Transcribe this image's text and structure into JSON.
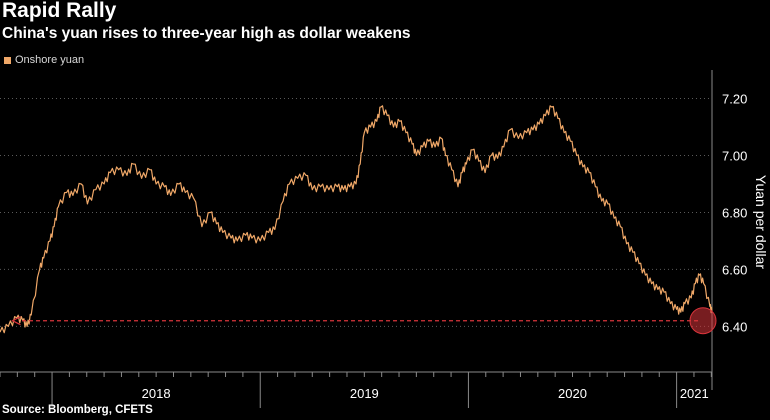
{
  "header": {
    "title": "Rapid Rally",
    "subtitle": "China's yuan rises to three-year high as dollar weakens"
  },
  "legend": {
    "label": "Onshore yuan",
    "color": "#f0a868"
  },
  "footer": {
    "source": "Source: Bloomberg, CFETS"
  },
  "chart_data": {
    "type": "line",
    "title": "Rapid Rally",
    "subtitle": "China's yuan rises to three-year high as dollar weakens",
    "ylabel": "Yuan per dollar",
    "ylim": [
      6.24,
      7.3
    ],
    "yticks": [
      6.4,
      6.6,
      6.8,
      7.0,
      7.2
    ],
    "ytick_labels": [
      "6.40",
      "6.60",
      "6.80",
      "7.00",
      "7.20"
    ],
    "xlim": [
      2017.75,
      2021.17
    ],
    "year_ticks": [
      {
        "label": "2018",
        "pos": 2018.0
      },
      {
        "label": "2019",
        "pos": 2019.0
      },
      {
        "label": "2020",
        "pos": 2020.0
      },
      {
        "label": "2021",
        "pos": 2021.0
      }
    ],
    "grid": true,
    "series": [
      {
        "name": "Onshore yuan",
        "color": "#f0a868",
        "points": [
          [
            2017.75,
            6.38
          ],
          [
            2017.79,
            6.4
          ],
          [
            2017.83,
            6.43
          ],
          [
            2017.86,
            6.42
          ],
          [
            2017.88,
            6.4
          ],
          [
            2017.9,
            6.44
          ],
          [
            2017.94,
            6.6
          ],
          [
            2017.96,
            6.64
          ],
          [
            2017.99,
            6.7
          ],
          [
            2018.01,
            6.75
          ],
          [
            2018.03,
            6.82
          ],
          [
            2018.07,
            6.87
          ],
          [
            2018.1,
            6.86
          ],
          [
            2018.14,
            6.9
          ],
          [
            2018.17,
            6.83
          ],
          [
            2018.21,
            6.88
          ],
          [
            2018.25,
            6.9
          ],
          [
            2018.28,
            6.94
          ],
          [
            2018.32,
            6.95
          ],
          [
            2018.36,
            6.93
          ],
          [
            2018.39,
            6.97
          ],
          [
            2018.43,
            6.92
          ],
          [
            2018.47,
            6.95
          ],
          [
            2018.5,
            6.9
          ],
          [
            2018.54,
            6.89
          ],
          [
            2018.57,
            6.86
          ],
          [
            2018.61,
            6.9
          ],
          [
            2018.64,
            6.87
          ],
          [
            2018.68,
            6.85
          ],
          [
            2018.72,
            6.75
          ],
          [
            2018.76,
            6.8
          ],
          [
            2018.79,
            6.76
          ],
          [
            2018.82,
            6.73
          ],
          [
            2018.86,
            6.71
          ],
          [
            2018.89,
            6.7
          ],
          [
            2018.93,
            6.72
          ],
          [
            2018.96,
            6.71
          ],
          [
            2019.0,
            6.7
          ],
          [
            2019.04,
            6.73
          ],
          [
            2019.07,
            6.74
          ],
          [
            2019.11,
            6.84
          ],
          [
            2019.14,
            6.9
          ],
          [
            2019.18,
            6.92
          ],
          [
            2019.22,
            6.93
          ],
          [
            2019.25,
            6.88
          ],
          [
            2019.29,
            6.89
          ],
          [
            2019.33,
            6.88
          ],
          [
            2019.37,
            6.89
          ],
          [
            2019.4,
            6.88
          ],
          [
            2019.43,
            6.89
          ],
          [
            2019.46,
            6.9
          ],
          [
            2019.48,
            6.97
          ],
          [
            2019.5,
            7.08
          ],
          [
            2019.53,
            7.1
          ],
          [
            2019.56,
            7.12
          ],
          [
            2019.58,
            7.17
          ],
          [
            2019.61,
            7.14
          ],
          [
            2019.64,
            7.1
          ],
          [
            2019.67,
            7.12
          ],
          [
            2019.7,
            7.08
          ],
          [
            2019.73,
            7.04
          ],
          [
            2019.75,
            7.0
          ],
          [
            2019.78,
            7.03
          ],
          [
            2019.81,
            7.05
          ],
          [
            2019.84,
            7.03
          ],
          [
            2019.87,
            7.06
          ],
          [
            2019.89,
            7.0
          ],
          [
            2019.92,
            6.95
          ],
          [
            2019.95,
            6.89
          ],
          [
            2019.97,
            6.94
          ],
          [
            2019.99,
            6.97
          ],
          [
            2020.02,
            7.02
          ],
          [
            2020.05,
            6.98
          ],
          [
            2020.08,
            6.94
          ],
          [
            2020.11,
            7.0
          ],
          [
            2020.14,
            6.99
          ],
          [
            2020.17,
            7.03
          ],
          [
            2020.2,
            7.09
          ],
          [
            2020.24,
            7.06
          ],
          [
            2020.28,
            7.08
          ],
          [
            2020.31,
            7.09
          ],
          [
            2020.34,
            7.11
          ],
          [
            2020.37,
            7.14
          ],
          [
            2020.4,
            7.17
          ],
          [
            2020.43,
            7.13
          ],
          [
            2020.46,
            7.08
          ],
          [
            2020.49,
            7.05
          ],
          [
            2020.52,
            7.0
          ],
          [
            2020.55,
            6.96
          ],
          [
            2020.58,
            6.94
          ],
          [
            2020.61,
            6.89
          ],
          [
            2020.64,
            6.84
          ],
          [
            2020.67,
            6.83
          ],
          [
            2020.7,
            6.78
          ],
          [
            2020.73,
            6.75
          ],
          [
            2020.76,
            6.69
          ],
          [
            2020.79,
            6.66
          ],
          [
            2020.82,
            6.62
          ],
          [
            2020.85,
            6.58
          ],
          [
            2020.88,
            6.55
          ],
          [
            2020.91,
            6.53
          ],
          [
            2020.94,
            6.52
          ],
          [
            2020.97,
            6.48
          ],
          [
            2021.0,
            6.46
          ],
          [
            2021.02,
            6.45
          ],
          [
            2021.04,
            6.48
          ],
          [
            2021.07,
            6.5
          ],
          [
            2021.09,
            6.55
          ],
          [
            2021.11,
            6.58
          ],
          [
            2021.13,
            6.55
          ],
          [
            2021.16,
            6.47
          ],
          [
            2021.17,
            6.45
          ]
        ]
      }
    ],
    "annotation": {
      "type": "dashed-arrow",
      "level": 6.42,
      "from_x": 2021.17,
      "to_x": 2017.81,
      "color": "#d9343b",
      "highlight_circle": true
    }
  }
}
